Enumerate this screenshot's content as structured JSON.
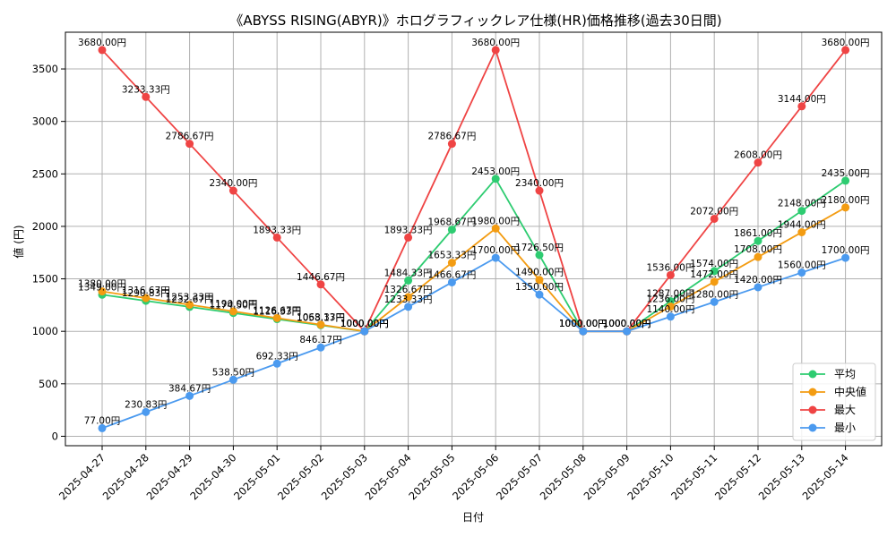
{
  "chart_data": {
    "type": "line",
    "title": "《ABYSS RISING(ABYR)》ホログラフィックレア仕様(HR)価格推移(過去30日間)",
    "xlabel": "日付",
    "ylabel": "値 (円)",
    "ylim": [
      -90,
      3850
    ],
    "yticks": [
      0,
      500,
      1000,
      1500,
      2000,
      2500,
      3000,
      3500
    ],
    "grid": true,
    "legend_position": "bottom-right",
    "value_suffix": "円",
    "x": [
      "2025-04-27",
      "2025-04-28",
      "2025-04-29",
      "2025-04-30",
      "2025-05-01",
      "2025-05-02",
      "2025-05-03",
      "2025-05-04",
      "2025-05-05",
      "2025-05-06",
      "2025-05-07",
      "2025-05-08",
      "2025-05-09",
      "2025-05-10",
      "2025-05-11",
      "2025-05-12",
      "2025-05-13",
      "2025-05-14"
    ],
    "series": [
      {
        "name": "平均",
        "color": "#2ecc71",
        "values": [
          1349.0,
          1290.83,
          1232.67,
          1174.5,
          1116.33,
          1058.17,
          1000.0,
          1484.33,
          1968.67,
          2453.0,
          1726.5,
          1000.0,
          1000.0,
          1287.0,
          1574.0,
          1861.0,
          2148.0,
          2435.0
        ]
      },
      {
        "name": "中央値",
        "color": "#f39c12",
        "values": [
          1380.0,
          1316.67,
          1253.33,
          1190.0,
          1126.67,
          1063.33,
          1000.0,
          1326.67,
          1653.33,
          1980.0,
          1490.0,
          1000.0,
          1000.0,
          1236.0,
          1472.0,
          1708.0,
          1944.0,
          2180.0
        ]
      },
      {
        "name": "最大",
        "color": "#ef4444",
        "values": [
          3680.0,
          3233.33,
          2786.67,
          2340.0,
          1893.33,
          1446.67,
          1000.0,
          1893.33,
          2786.67,
          3680.0,
          2340.0,
          1000.0,
          1000.0,
          1536.0,
          2072.0,
          2608.0,
          3144.0,
          3680.0
        ]
      },
      {
        "name": "最小",
        "color": "#4b9aef",
        "values": [
          77.0,
          230.83,
          384.67,
          538.5,
          692.33,
          846.17,
          1000.0,
          1233.33,
          1466.67,
          1700.0,
          1350.0,
          1000.0,
          1000.0,
          1140.0,
          1280.0,
          1420.0,
          1560.0,
          1700.0
        ]
      }
    ]
  }
}
